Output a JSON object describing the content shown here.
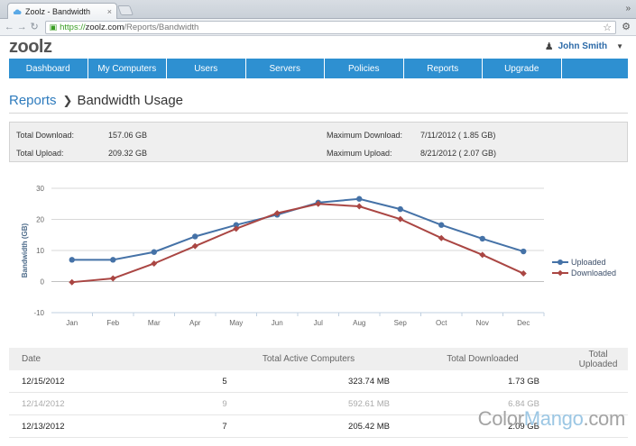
{
  "browser": {
    "tab_title": "Zoolz - Bandwidth",
    "tab_close": "×",
    "overflow": "»",
    "url_scheme": "https://",
    "url_host": "zoolz.com",
    "url_path": "/Reports/Bandwidth",
    "icons": [
      "back-icon",
      "forward-icon",
      "reload-icon",
      "lock-icon",
      "star-icon",
      "wrench-icon"
    ]
  },
  "header": {
    "logo": "zoolz",
    "user_name": "John Smith"
  },
  "nav": {
    "items": [
      "Dashboard",
      "My Computers",
      "Users",
      "Servers",
      "Policies",
      "Reports",
      "Upgrade",
      ""
    ]
  },
  "breadcrumb": {
    "parent": "Reports",
    "current": "Bandwidth Usage"
  },
  "summary": {
    "total_download_label": "Total Download:",
    "total_download_value": "157.06 GB",
    "total_upload_label": "Total Upload:",
    "total_upload_value": "209.32 GB",
    "max_download_label": "Maximum Download:",
    "max_download_value": "7/11/2012 ( 1.85 GB)",
    "max_upload_label": "Maximum Upload:",
    "max_upload_value": "8/21/2012 ( 2.07 GB)"
  },
  "chart_data": {
    "type": "line",
    "categories": [
      "Jan",
      "Feb",
      "Mar",
      "Apr",
      "May",
      "Jun",
      "Jul",
      "Aug",
      "Sep",
      "Oct",
      "Nov",
      "Dec"
    ],
    "series": [
      {
        "name": "Uploaded",
        "color": "#4572a7",
        "marker": "circle",
        "values": [
          7,
          7,
          9.5,
          14.5,
          18.2,
          21.5,
          25.4,
          26.6,
          23.3,
          18.2,
          13.8,
          9.7
        ]
      },
      {
        "name": "Downloaded",
        "color": "#aa4643",
        "marker": "diamond",
        "values": [
          -0.2,
          1,
          5.8,
          11.4,
          17,
          22,
          25,
          24.2,
          20.1,
          14,
          8.6,
          2.6
        ]
      }
    ],
    "title": "",
    "xlabel": "",
    "ylabel": "Bandwidth (GB)",
    "ylim": [
      -10,
      30
    ],
    "yticks": [
      -10,
      0,
      10,
      20,
      30
    ],
    "grid": true,
    "legend": "right"
  },
  "table": {
    "headers": [
      "Date",
      "Total Active Computers",
      "Total Downloaded",
      "Total Uploaded"
    ],
    "rows": [
      [
        "12/15/2012",
        "5",
        "323.74 MB",
        "1.73 GB"
      ],
      [
        "12/14/2012",
        "9",
        "592.61 MB",
        "6.84 GB"
      ],
      [
        "12/13/2012",
        "7",
        "205.42 MB",
        "2.09 GB"
      ]
    ]
  },
  "watermark": {
    "part1": "Color",
    "part2": "Mango",
    "part3": ".com"
  }
}
